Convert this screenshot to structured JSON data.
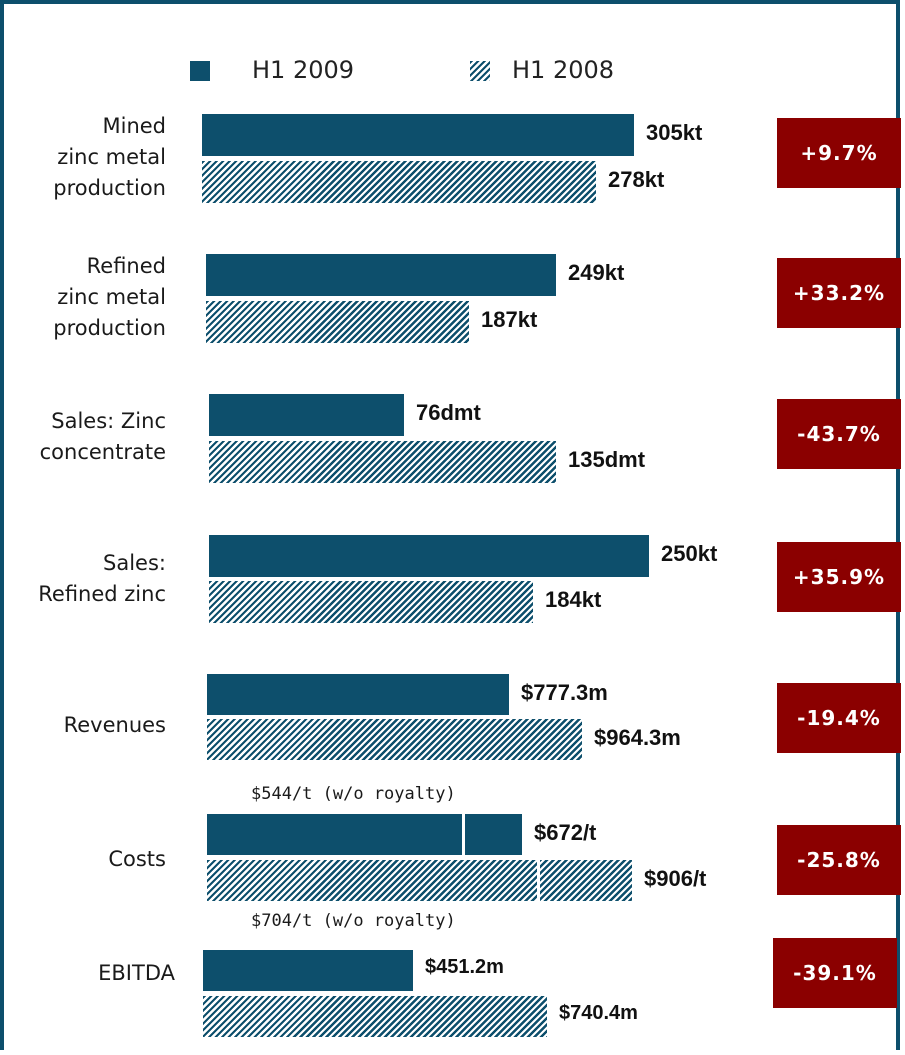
{
  "legend": {
    "current_label": "H1 2009",
    "previous_label": "H1 2008"
  },
  "colors": {
    "bar": "#0d4f6c",
    "badge": "#8b0000",
    "frame": "#0d4f6c"
  },
  "chart_data": {
    "type": "bar",
    "orientation": "horizontal",
    "series": [
      {
        "name": "H1 2009",
        "style": "solid"
      },
      {
        "name": "H1 2008",
        "style": "hatched"
      }
    ],
    "rows": [
      {
        "id": "mined",
        "label_lines": [
          "Mined",
          "zinc metal",
          "production"
        ],
        "current": {
          "value": 305,
          "label": "305kt"
        },
        "previous": {
          "value": 278,
          "label": "278kt"
        },
        "change": "+9.7%"
      },
      {
        "id": "refined",
        "label_lines": [
          "Refined",
          "zinc metal",
          "production"
        ],
        "current": {
          "value": 249,
          "label": "249kt"
        },
        "previous": {
          "value": 187,
          "label": "187kt"
        },
        "change": "+33.2%"
      },
      {
        "id": "sales-concentrate",
        "label_lines": [
          "Sales: Zinc",
          "concentrate"
        ],
        "current": {
          "value": 76,
          "label": "76dmt"
        },
        "previous": {
          "value": 135,
          "label": "135dmt"
        },
        "change": "-43.7%"
      },
      {
        "id": "sales-refined",
        "label_lines": [
          "Sales:",
          "Refined zinc"
        ],
        "current": {
          "value": 250,
          "label": "250kt"
        },
        "previous": {
          "value": 184,
          "label": "184kt"
        },
        "change": "+35.9%"
      },
      {
        "id": "revenues",
        "label_lines": [
          "Revenues"
        ],
        "current": {
          "value": 777.3,
          "label": "$777.3m"
        },
        "previous": {
          "value": 964.3,
          "label": "$964.3m"
        },
        "change": "-19.4%"
      },
      {
        "id": "costs",
        "label_lines": [
          "Costs"
        ],
        "current": {
          "value": 672,
          "split": 544,
          "label": "$672/t"
        },
        "previous": {
          "value": 906,
          "split": 704,
          "label": "$906/t"
        },
        "current_note": "$544/t (w/o royalty)",
        "previous_note": "$704/t (w/o royalty)",
        "change": "-25.8%"
      },
      {
        "id": "ebitda",
        "label_lines": [
          "EBITDA"
        ],
        "current": {
          "value": 451.2,
          "label": "$451.2m"
        },
        "previous": {
          "value": 740.4,
          "label": "$740.4m"
        },
        "change": "-39.1%"
      }
    ]
  }
}
